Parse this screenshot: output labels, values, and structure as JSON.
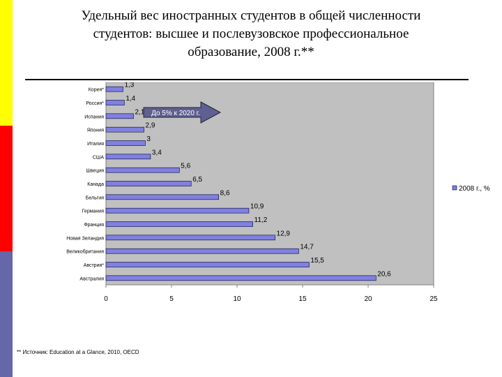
{
  "slide": {
    "title_lines": [
      "Удельный вес иностранных студентов в общей численности",
      "студентов: высшее и послевузовское профессиональное",
      "образование, 2008 г.**"
    ],
    "source": "** Источник: Education at a Glance, 2010, OECD",
    "stripe_colors": [
      "#FFFF00",
      "#FF0000",
      "#6666AA"
    ]
  },
  "chart_data": {
    "type": "bar",
    "orientation": "horizontal",
    "categories": [
      "Корея*",
      "Россия*",
      "Испания",
      "Япония",
      "Италия",
      "США",
      "Швеция",
      "Канада",
      "Бельгия",
      "Германия",
      "Франция",
      "Новая Зеландия",
      "Великобритания",
      "Австрия*",
      "Австралия"
    ],
    "values": [
      1.3,
      1.4,
      2.1,
      2.9,
      3,
      3.4,
      5.6,
      6.5,
      8.6,
      10.9,
      11.2,
      12.9,
      14.7,
      15.5,
      20.6
    ],
    "data_labels": [
      "1,3",
      "1,4",
      "2,1",
      "2,9",
      "3",
      "3,4",
      "5,6",
      "6,5",
      "8,6",
      "10,9",
      "11,2",
      "12,9",
      "14,7",
      "15,5",
      "20,6"
    ],
    "x_ticks": [
      "0",
      "5",
      "10",
      "15",
      "20",
      "25"
    ],
    "xlim": [
      0,
      25
    ],
    "legend": "2008 г., %",
    "legend_position": "right",
    "annotation": "До 5% к 2020 г.",
    "bar_color": "#8080E0",
    "plot_background": "#C0C0C0",
    "grid": false
  }
}
